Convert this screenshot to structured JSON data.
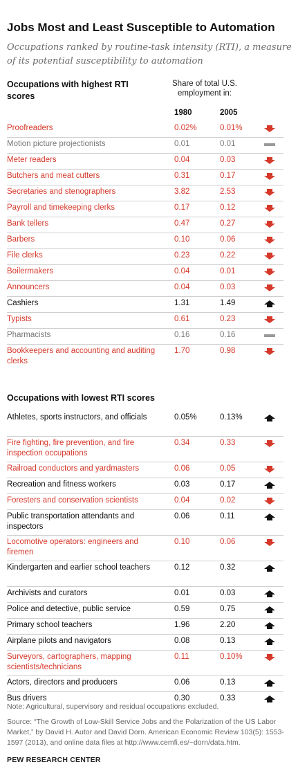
{
  "title": "Jobs Most and Least Susceptible to Automation",
  "subtitle": "Occupations ranked by routine-task intensity (RTI), a measure of its potential susceptibility to automation",
  "share_header": "Share of total U.S. employment in:",
  "years": [
    "1980",
    "2005"
  ],
  "colors": {
    "down": "#d6392b",
    "same": "#999999",
    "up": "#111111"
  },
  "note": "Note: Agricultural, supervisory and residual occupations excluded.",
  "source": "Source: “The Growth of Low-Skill Service Jobs and the Polarization of the US Labor Market,” by David H. Autor and David Dorn. American Economic Review 103(5): 1553-1597 (2013), and online data files at http://www.cemfi.es/~dorn/data.htm.",
  "brand": "PEW RESEARCH CENTER",
  "chart_data": {
    "type": "table",
    "columns": [
      "1980",
      "2005"
    ],
    "sections": [
      {
        "heading": "Occupations with highest RTI scores",
        "rows": [
          {
            "name": "Proofreaders",
            "v1980": "0.02%",
            "v2005": "0.01%",
            "trend": "down"
          },
          {
            "name": "Motion picture projectionists",
            "v1980": "0.01",
            "v2005": "0.01",
            "trend": "same"
          },
          {
            "name": "Meter readers",
            "v1980": "0.04",
            "v2005": "0.03",
            "trend": "down"
          },
          {
            "name": "Butchers and meat cutters",
            "v1980": "0.31",
            "v2005": "0.17",
            "trend": "down"
          },
          {
            "name": "Secretaries and stenographers",
            "v1980": "3.82",
            "v2005": "2.53",
            "trend": "down"
          },
          {
            "name": "Payroll and timekeeping clerks",
            "v1980": "0.17",
            "v2005": "0.12",
            "trend": "down"
          },
          {
            "name": "Bank tellers",
            "v1980": "0.47",
            "v2005": "0.27",
            "trend": "down"
          },
          {
            "name": "Barbers",
            "v1980": "0.10",
            "v2005": "0.06",
            "trend": "down"
          },
          {
            "name": "File clerks",
            "v1980": "0.23",
            "v2005": "0.22",
            "trend": "down"
          },
          {
            "name": "Boilermakers",
            "v1980": "0.04",
            "v2005": "0.01",
            "trend": "down"
          },
          {
            "name": "Announcers",
            "v1980": "0.04",
            "v2005": "0.03",
            "trend": "down"
          },
          {
            "name": "Cashiers",
            "v1980": "1.31",
            "v2005": "1.49",
            "trend": "up"
          },
          {
            "name": "Typists",
            "v1980": "0.61",
            "v2005": "0.23",
            "trend": "down"
          },
          {
            "name": "Pharmacists",
            "v1980": "0.16",
            "v2005": "0.16",
            "trend": "same"
          },
          {
            "name": "Bookkeepers and accounting and auditing clerks",
            "v1980": "1.70",
            "v2005": "0.98",
            "trend": "down"
          }
        ]
      },
      {
        "heading": "Occupations with lowest RTI scores",
        "rows": [
          {
            "name": "Athletes, sports instructors, and officials",
            "v1980": "0.05%",
            "v2005": "0.13%",
            "trend": "up"
          },
          {
            "name": "Fire fighting, fire prevention, and fire inspection occupations",
            "v1980": "0.34",
            "v2005": "0.33",
            "trend": "down"
          },
          {
            "name": "Railroad conductors and yardmasters",
            "v1980": "0.06",
            "v2005": "0.05",
            "trend": "down"
          },
          {
            "name": "Recreation and fitness workers",
            "v1980": "0.03",
            "v2005": "0.17",
            "trend": "up"
          },
          {
            "name": "Foresters and conservation scientists",
            "v1980": "0.04",
            "v2005": "0.02",
            "trend": "down"
          },
          {
            "name": "Public transportation attendants and inspectors",
            "v1980": "0.06",
            "v2005": "0.11",
            "trend": "up"
          },
          {
            "name": "Locomotive operators: engineers and firemen",
            "v1980": "0.10",
            "v2005": "0.06",
            "trend": "down"
          },
          {
            "name": "Kindergarten and earlier school teachers",
            "v1980": "0.12",
            "v2005": "0.32",
            "trend": "up"
          },
          {
            "name": "Archivists and curators",
            "v1980": "0.01",
            "v2005": "0.03",
            "trend": "up"
          },
          {
            "name": "Police and detective, public service",
            "v1980": "0.59",
            "v2005": "0.75",
            "trend": "up"
          },
          {
            "name": "Primary school teachers",
            "v1980": "1.96",
            "v2005": "2.20",
            "trend": "up"
          },
          {
            "name": "Airplane pilots and navigators",
            "v1980": "0.08",
            "v2005": "0.13",
            "trend": "up"
          },
          {
            "name": "Surveyors, cartographers, mapping scientists/technicians",
            "v1980": "0.11",
            "v2005": "0.10%",
            "trend": "down"
          },
          {
            "name": "Actors, directors and producers",
            "v1980": "0.06",
            "v2005": "0.13",
            "trend": "up"
          },
          {
            "name": "Bus drivers",
            "v1980": "0.30",
            "v2005": "0.33",
            "trend": "up"
          }
        ]
      }
    ]
  }
}
